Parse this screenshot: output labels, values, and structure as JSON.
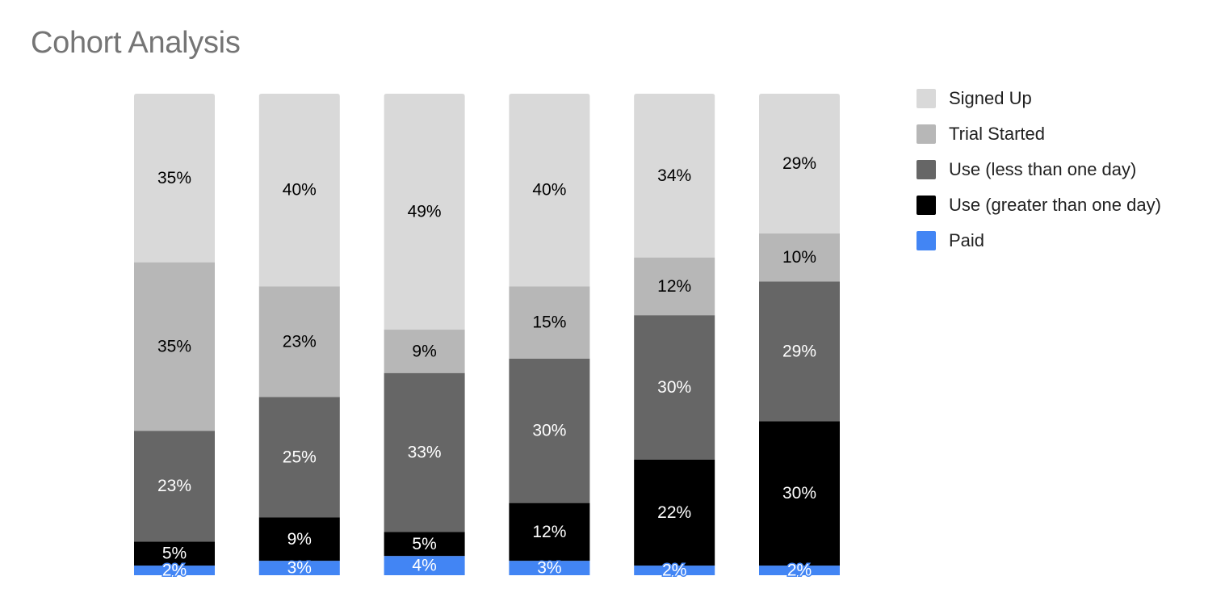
{
  "title": "Cohort Analysis",
  "chart_data": {
    "type": "bar",
    "stacked": true,
    "normalized": true,
    "title": "Cohort Analysis",
    "xlabel": "",
    "ylabel": "",
    "ylim": [
      0,
      100
    ],
    "grid": false,
    "legend_position": "right",
    "categories": [
      "",
      "",
      "",
      "",
      "",
      ""
    ],
    "series": [
      {
        "name": "Paid",
        "color": "#4285f4",
        "label_color": "#ffffff",
        "values": [
          2,
          3,
          4,
          3,
          2,
          2
        ]
      },
      {
        "name": "Use (greater than one day)",
        "color": "#000000",
        "label_color": "#ffffff",
        "values": [
          5,
          9,
          5,
          12,
          22,
          30
        ]
      },
      {
        "name": "Use (less than one day)",
        "color": "#666666",
        "label_color": "#ffffff",
        "values": [
          23,
          25,
          33,
          30,
          30,
          29
        ]
      },
      {
        "name": "Trial Started",
        "color": "#b7b7b7",
        "label_color": "#000000",
        "values": [
          35,
          23,
          9,
          15,
          12,
          10
        ]
      },
      {
        "name": "Signed Up",
        "color": "#d9d9d9",
        "label_color": "#000000",
        "values": [
          35,
          40,
          49,
          40,
          34,
          29
        ]
      }
    ],
    "data_labels": [
      [
        "2%",
        "5%",
        "23%",
        "35%",
        "35%"
      ],
      [
        "3%",
        "9%",
        "25%",
        "23%",
        "40%"
      ],
      [
        "4%",
        "5%",
        "33%",
        "9%",
        "49%"
      ],
      [
        "3%",
        "12%",
        "30%",
        "15%",
        "40%"
      ],
      [
        "2%",
        "22%",
        "30%",
        "12%",
        "34%"
      ],
      [
        "2%",
        "30%",
        "29%",
        "10%",
        "29%"
      ]
    ],
    "legend_order": [
      "Signed Up",
      "Trial Started",
      "Use (less than one day)",
      "Use (greater than one day)",
      "Paid"
    ]
  }
}
